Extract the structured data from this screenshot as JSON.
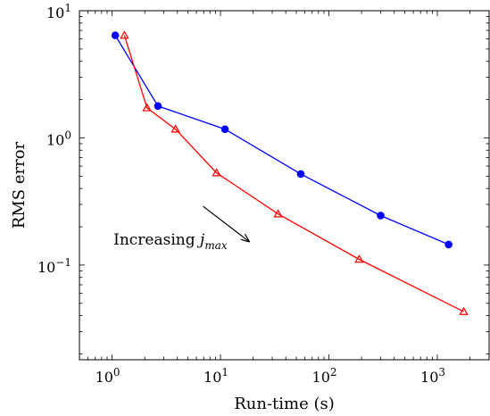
{
  "chart_data": {
    "type": "line",
    "xlabel": "Run-time (s)",
    "ylabel": "RMS error",
    "xscale": "log",
    "yscale": "log",
    "xlim": [
      0.5,
      3000
    ],
    "ylim": [
      0.018,
      10
    ],
    "grid": false,
    "legend": "none",
    "x_ticks": [
      {
        "value": 1,
        "base": "10",
        "exp": "0"
      },
      {
        "value": 10,
        "base": "10",
        "exp": "1"
      },
      {
        "value": 100,
        "base": "10",
        "exp": "2"
      },
      {
        "value": 1000,
        "base": "10",
        "exp": "3"
      }
    ],
    "y_ticks": [
      {
        "value": 0.1,
        "base": "10",
        "exp": "−1"
      },
      {
        "value": 1,
        "base": "10",
        "exp": "0"
      },
      {
        "value": 10,
        "base": "10",
        "exp": "1"
      }
    ],
    "series": [
      {
        "color": "#0000ff",
        "marker": "circle",
        "x": [
          1.07,
          2.65,
          11.0,
          55.0,
          300.0,
          1270.0
        ],
        "y": [
          6.4,
          1.78,
          1.17,
          0.52,
          0.245,
          0.145
        ]
      },
      {
        "color": "#ff0000",
        "marker": "triangle",
        "x": [
          1.3,
          2.1,
          3.85,
          9.2,
          34.0,
          190.0,
          1750.0
        ],
        "y": [
          6.4,
          1.72,
          1.17,
          0.53,
          0.252,
          0.111,
          0.043
        ]
      }
    ],
    "annotation": {
      "text": "Increasing ",
      "math_var": "j",
      "math_sub": "max",
      "arrow_from": [
        6.9,
        0.29
      ],
      "arrow_to": [
        18.0,
        0.155
      ],
      "text_anchor": [
        1.03,
        0.145
      ]
    }
  }
}
